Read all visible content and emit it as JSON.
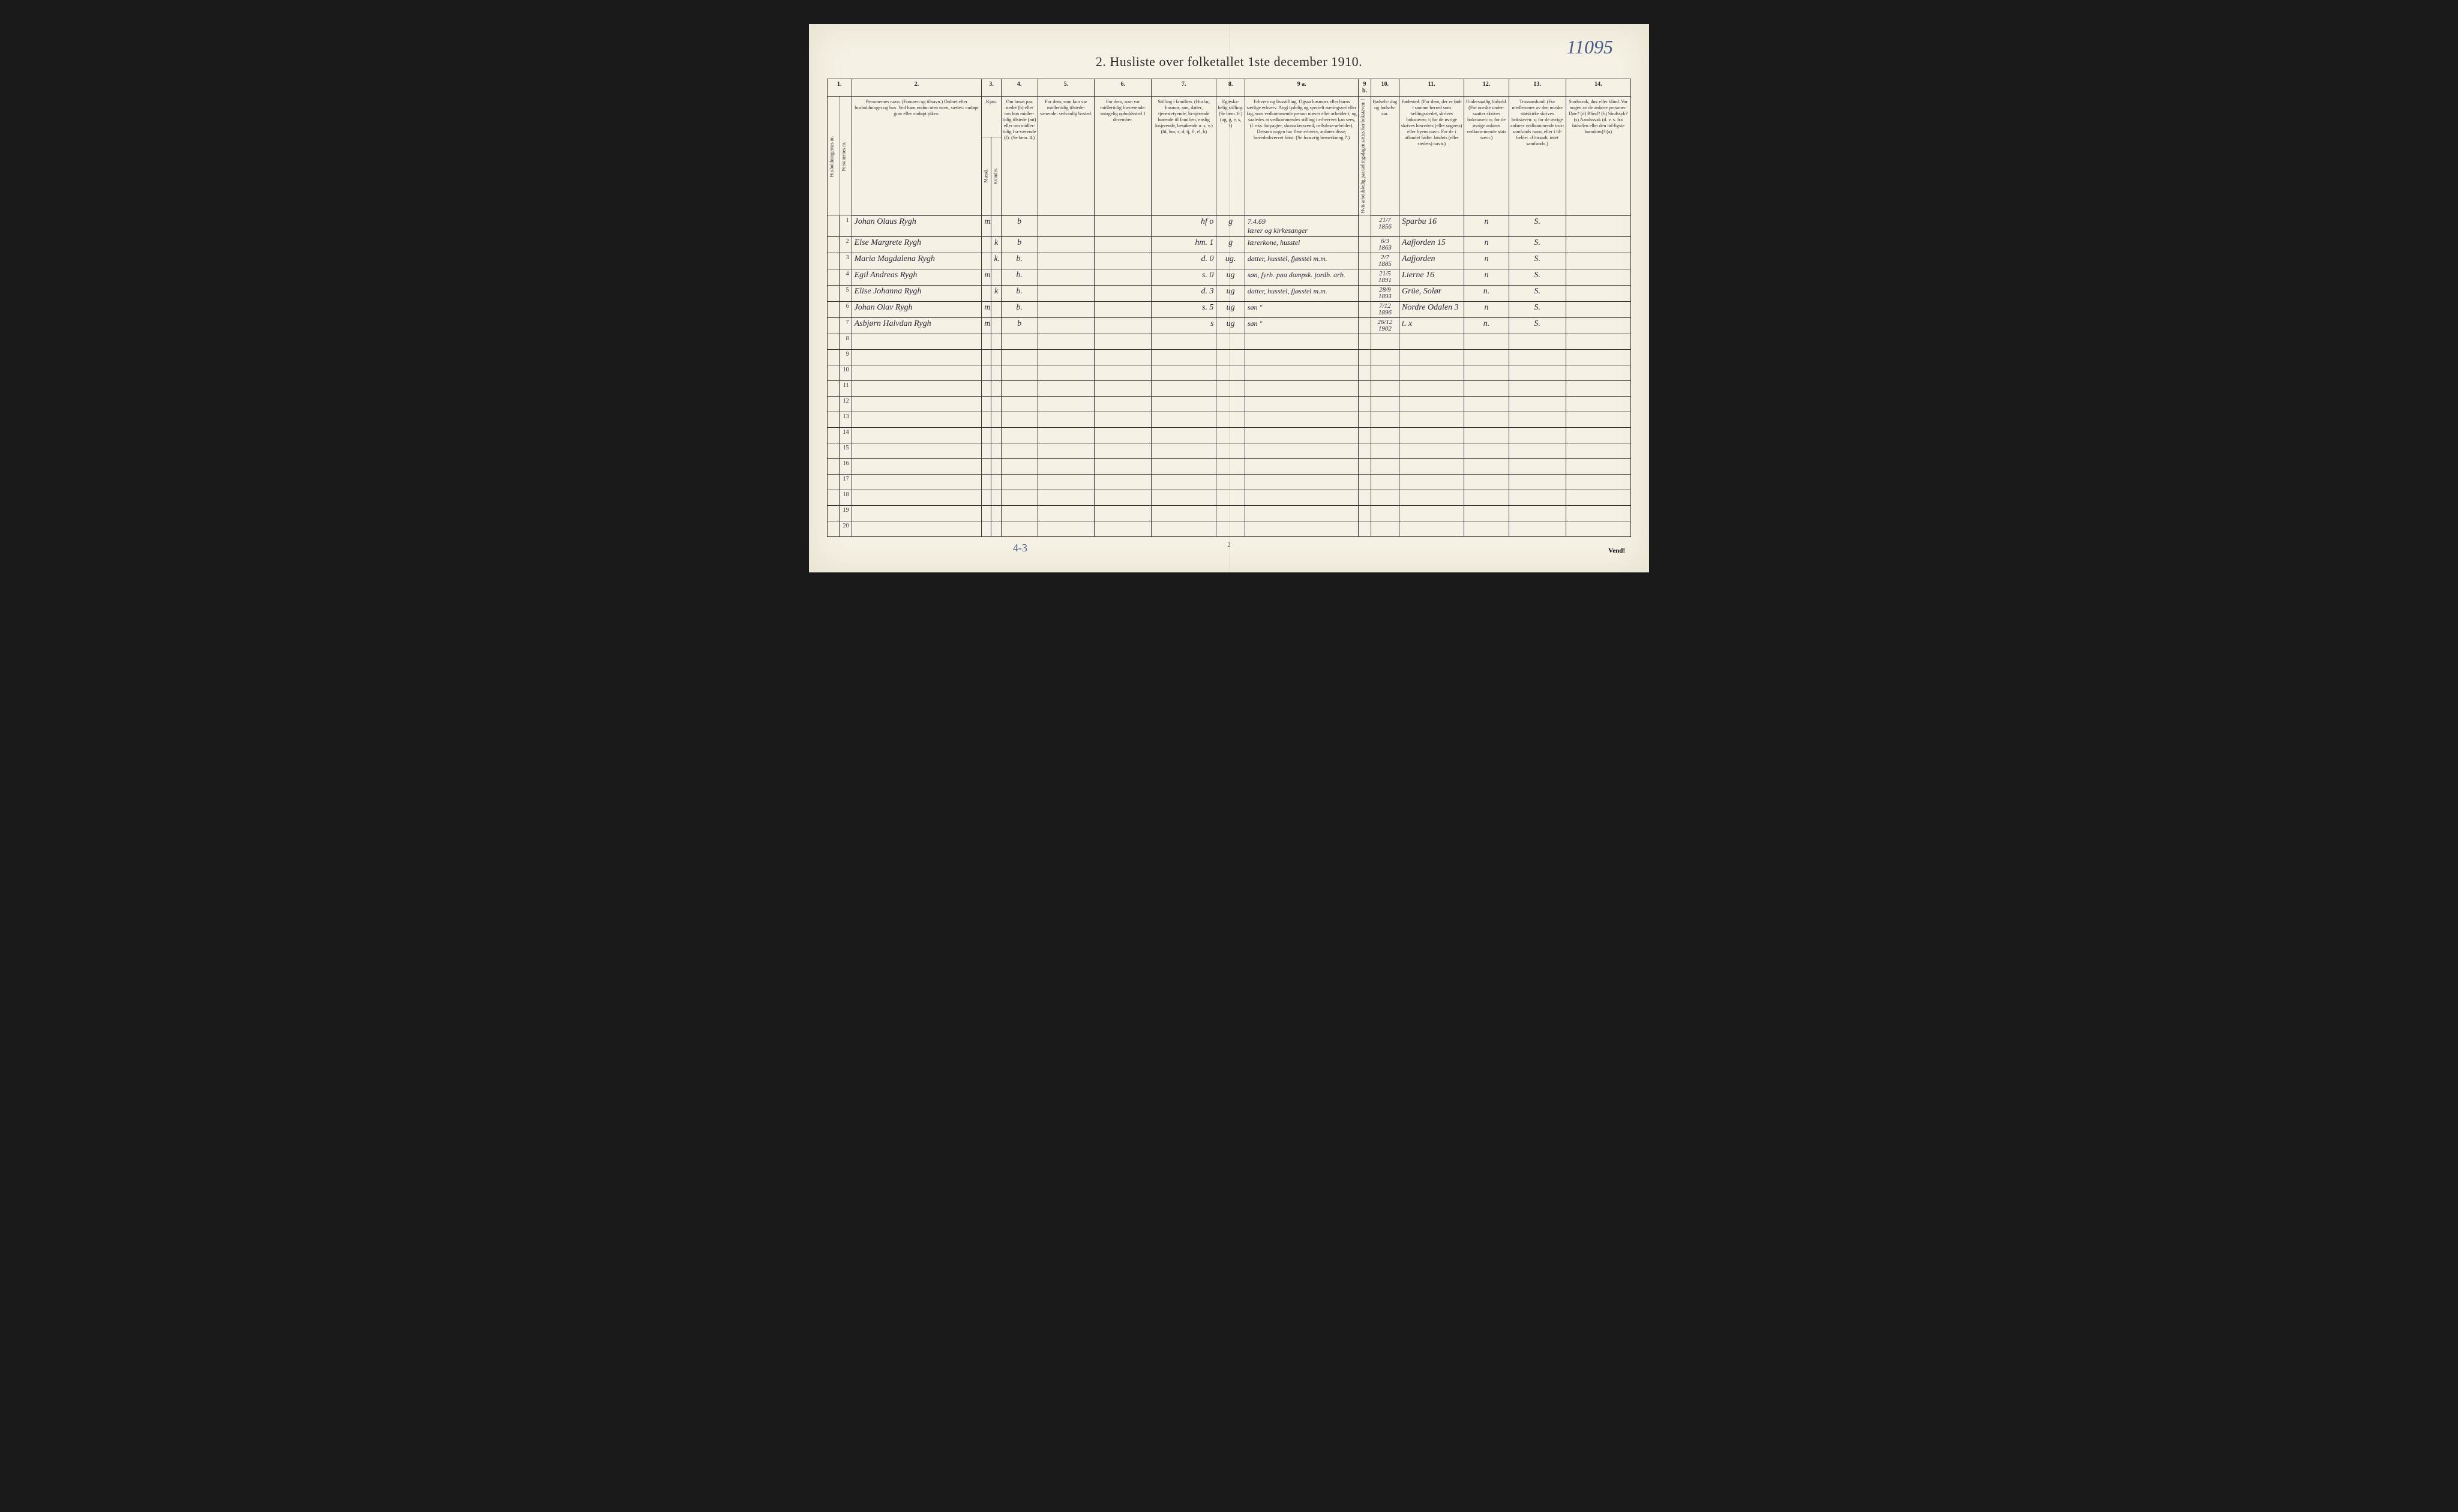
{
  "page": {
    "title": "2.  Husliste over folketallet 1ste december 1910.",
    "topRightNote": "11095",
    "bottomLeftNote": "4-3",
    "pageNumber": "2",
    "vendText": "Vend!"
  },
  "columns": {
    "nums": [
      "1.",
      "2.",
      "3.",
      "4.",
      "5.",
      "6.",
      "7.",
      "8.",
      "9 a.",
      "9 b.",
      "10.",
      "11.",
      "12.",
      "13.",
      "14."
    ],
    "col1a": "Husholdningernes nr.",
    "col1b": "Personernes nr.",
    "col2": "Personernes navn.\n(Fornavn og tilnavn.)\nOrdnet efter husholdninger og hus.\nVed barn endnu uten navn, sættes: «udøpt gut» eller «udøpt pike».",
    "col3": "Kjøn.",
    "col3a": "Mænd.",
    "col3b": "Kvinder.",
    "col3sub": "m.  k.",
    "col4": "Om bosat paa stedet (b) eller om kun midler-tidig tilstede (mt) eller om midler-tidig fra-værende (f). (Se bem. 4.)",
    "col5": "For dem, som kun var midlertidig tilstede-værende:\nsedvanlig bosted.",
    "col6": "For dem, som var midlertidig fraværende:\nantagelig opholdssted 1 december.",
    "col7": "Stilling i familien.\n(Husfar, husmor, søn, datter, tjenestetyende, lo-sjerende hørende til familien, enslig losjerende, besøkende o. s. v.)\n(hf, hm, s, d, tj, fl, el, b)",
    "col8": "Egteska-\nbelig\nstilling.\n(Se bem. 6.)\n(ug, g, e, s, f)",
    "col9a": "Erhverv og livsstilling.\nOgsaa husmors eller barns særlige erhverv. Angi tydelig og specielt næringsvei eller fag, som vedkommende person utøver eller arbeider i, og saaledes at vedkommendes stilling i erhvervet kan sees, (f. eks. forpagter, skomakersvend, cellulose-arbeider). Dersom nogen har flere erhverv, anføres disse, hovederhvervet først.\n(Se forøvrig bemerkning 7.)",
    "col9b": "Hvis arbeidsledig paa tællingsdagen sættes her bokstaven: l",
    "col10": "Fødsels-\ndag\nog\nfødsels-\naar.",
    "col11": "Fødested.\n(For dem, der er født i samme herred som tællingsstedet, skrives bokstaven: t; for de øvrige skrives herredets (eller sognets) eller byens navn. For de i utlandet fødte: landets (eller stedets) navn.)",
    "col12": "Undersaatlig forhold.\n(For norske under-saatter skrives bokstaven: n; for de øvrige anføres vedkom-mende stats navn.)",
    "col13": "Trossamfund.\n(For medlemmer av den norske statskirke skrives bokstaven: s; for de øvrige anføres vedkommende tros-samfunds navn, eller i til-fælde: «Uttraadt, intet samfund».)",
    "col14": "Sindssvak, døv eller blind.\nVar nogen av de anførte personer:\nDøv?      (d)\nBlind?    (b)\nSindssyk? (s)\nAandssvak (d. v. s. fra fødselen eller den tid-ligste barndom)? (a)"
  },
  "rows": [
    {
      "n": "1",
      "name": "Johan Olaus Rygh",
      "m": "m",
      "k": "",
      "res": "b",
      "c5": "",
      "c6": "",
      "fam": "hf   o",
      "eg": "g",
      "erv": "7.4.69\nlærer og kirkesanger",
      "c9b": "",
      "dob": "21/7\n1856",
      "birth": "Sparbu 16",
      "nat": "n",
      "rel": "S.",
      "c14": ""
    },
    {
      "n": "2",
      "name": "Else Margrete Rygh",
      "m": "",
      "k": "k",
      "res": "b",
      "c5": "",
      "c6": "",
      "fam": "hm.  1",
      "eg": "g",
      "erv": "lærerkone, husstel",
      "c9b": "",
      "dob": "6/3\n1863",
      "birth": "Aafjorden 15",
      "nat": "n",
      "rel": "S.",
      "c14": ""
    },
    {
      "n": "3",
      "name": "Maria Magdalena Rygh",
      "m": "",
      "k": "k.",
      "res": "b.",
      "c5": "",
      "c6": "",
      "fam": "d.   0",
      "eg": "ug.",
      "erv": "datter, husstel, fjøsstel m.m.",
      "c9b": "",
      "dob": "2/7\n1885",
      "birth": "Aafjorden",
      "nat": "n",
      "rel": "S.",
      "c14": ""
    },
    {
      "n": "4",
      "name": "Egil Andreas Rygh",
      "m": "m",
      "k": "",
      "res": "b.",
      "c5": "",
      "c6": "",
      "fam": "s.   0",
      "eg": "ug",
      "erv": "søn, fyrb. paa dampsk. jordb. arb.",
      "c9b": "",
      "dob": "21/5\n1891",
      "birth": "Lierne  16",
      "nat": "n",
      "rel": "S.",
      "c14": ""
    },
    {
      "n": "5",
      "name": "Elise Johanna Rygh",
      "m": "",
      "k": "k",
      "res": "b.",
      "c5": "",
      "c6": "",
      "fam": "d.   3",
      "eg": "ug",
      "erv": "datter, husstel, fjøsstel m.m.",
      "c9b": "",
      "dob": "28/9\n1893",
      "birth": "Grüe, Solør",
      "nat": "n.",
      "rel": "S.",
      "c14": ""
    },
    {
      "n": "6",
      "name": "Johan Olav Rygh",
      "m": "m",
      "k": "",
      "res": "b.",
      "c5": "",
      "c6": "",
      "fam": "s.   5",
      "eg": "ug",
      "erv": "søn   \"",
      "c9b": "",
      "dob": "7/12\n1896",
      "birth": "Nordre Odalen 3",
      "nat": "n",
      "rel": "S.",
      "c14": ""
    },
    {
      "n": "7",
      "name": "Asbjørn Halvdan Rygh",
      "m": "m",
      "k": "",
      "res": "b",
      "c5": "",
      "c6": "",
      "fam": "s",
      "eg": "ug",
      "erv": "søn   \"",
      "c9b": "",
      "dob": "26/12\n1902",
      "birth": "t.   x",
      "nat": "n.",
      "rel": "S.",
      "c14": ""
    }
  ],
  "emptyRows": [
    "8",
    "9",
    "10",
    "11",
    "12",
    "13",
    "14",
    "15",
    "16",
    "17",
    "18",
    "19",
    "20"
  ]
}
